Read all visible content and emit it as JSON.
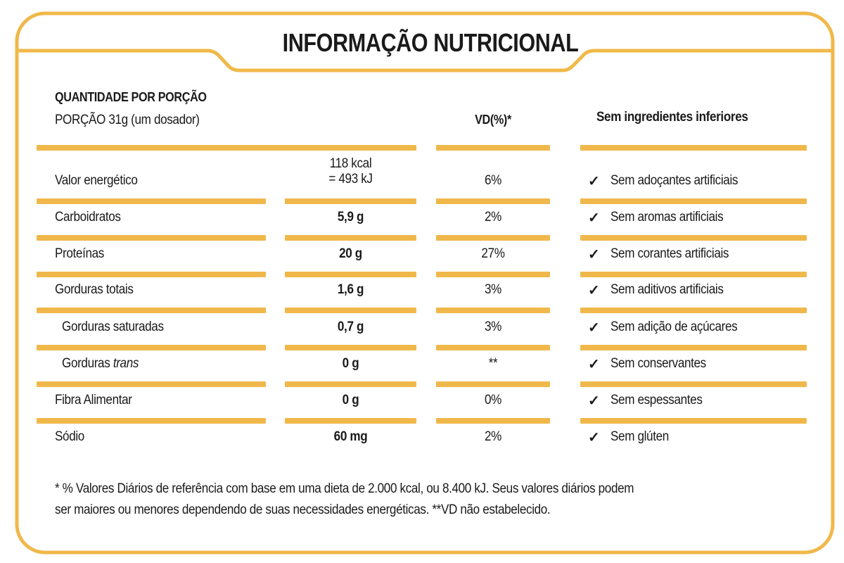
{
  "title": "INFORMAÇÃO NUTRICIONAL",
  "header": {
    "quantity_label": "QUANTIDADE POR PORÇÃO",
    "serving": "PORÇÃO 31g (um dosador)",
    "vd_label": "VD(%)*",
    "free_from_title": "Sem ingredientes inferiores"
  },
  "rows": [
    {
      "name": "Valor energético",
      "value_line1": "118 kcal",
      "value_line2": "= 493 kJ",
      "vd": "6%"
    },
    {
      "name": "Carboidratos",
      "value": "5,9 g",
      "vd": "2%"
    },
    {
      "name": "Proteínas",
      "value": "20 g",
      "vd": "27%"
    },
    {
      "name": "Gorduras totais",
      "value": "1,6 g",
      "vd": "3%"
    },
    {
      "name": "Gorduras saturadas",
      "value": "0,7 g",
      "vd": "3%"
    },
    {
      "name": "Gorduras",
      "name_italic": "trans",
      "value": "0 g",
      "vd": "**"
    },
    {
      "name": "Fibra Alimentar",
      "value": "0 g",
      "vd": "0%"
    },
    {
      "name": "Sódio",
      "value": "60 mg",
      "vd": "2%"
    }
  ],
  "free_from": [
    "Sem adoçantes artificiais",
    "Sem aromas artificiais",
    "Sem corantes artificiais",
    "Sem aditivos artificiais",
    "Sem adição de açúcares",
    "Sem conservantes",
    "Sem espessantes",
    "Sem glúten"
  ],
  "footnote": {
    "line1": "* % Valores Diários de referência com base em uma dieta de 2.000 kcal, ou 8.400 kJ. Seus valores diários podem",
    "line2": "ser maiores ou menores dependendo de suas necessidades energéticas. **VD não estabelecido."
  },
  "colors": {
    "accent": "#f0b84a",
    "text": "#1a1a1a"
  }
}
